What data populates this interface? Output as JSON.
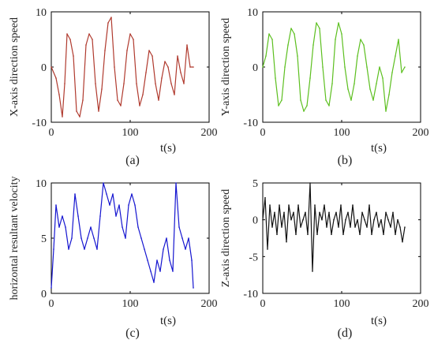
{
  "chart_data": [
    {
      "type": "line",
      "panel": "(a)",
      "caption": "(a)",
      "xlabel": "t(s)",
      "ylabel": "X-axis direction speed",
      "xlim": [
        0,
        200
      ],
      "ylim": [
        -10,
        10
      ],
      "xticks": [
        "0",
        "100",
        "200"
      ],
      "yticks": [
        "-10",
        "0",
        "10"
      ],
      "color": "#b03a2e",
      "x": [
        0,
        6,
        10,
        14,
        17,
        20,
        24,
        28,
        32,
        36,
        40,
        44,
        48,
        52,
        56,
        60,
        64,
        68,
        72,
        76,
        80,
        84,
        88,
        92,
        96,
        100,
        104,
        108,
        112,
        116,
        120,
        124,
        128,
        132,
        136,
        140,
        144,
        148,
        152,
        156,
        160,
        164,
        168,
        172,
        176,
        180
      ],
      "values": [
        0,
        -2,
        -5,
        -9,
        -3,
        6,
        5,
        2,
        -8,
        -9,
        -6,
        4,
        6,
        5,
        -3,
        -8,
        -4,
        3,
        8,
        9,
        0,
        -6,
        -7,
        -3,
        3,
        6,
        5,
        -3,
        -7,
        -5,
        -1,
        3,
        2,
        -3,
        -6,
        -2,
        1,
        0,
        -3,
        -5,
        2,
        -1,
        -3,
        4,
        0,
        0
      ]
    },
    {
      "type": "line",
      "panel": "(b)",
      "caption": "(b)",
      "xlabel": "t(s)",
      "ylabel": "Y-axis direction speed",
      "xlim": [
        0,
        200
      ],
      "ylim": [
        -10,
        10
      ],
      "xticks": [
        "0",
        "100",
        "200"
      ],
      "yticks": [
        "-10",
        "0",
        "10"
      ],
      "color": "#5cbf1f",
      "x": [
        0,
        4,
        8,
        12,
        16,
        20,
        24,
        28,
        32,
        36,
        40,
        44,
        48,
        52,
        56,
        60,
        64,
        68,
        72,
        76,
        80,
        84,
        88,
        92,
        96,
        100,
        104,
        108,
        112,
        116,
        120,
        124,
        128,
        132,
        136,
        140,
        144,
        148,
        152,
        156,
        160,
        164,
        168,
        172,
        176,
        180
      ],
      "values": [
        0,
        2,
        6,
        5,
        -2,
        -7,
        -6,
        0,
        4,
        7,
        6,
        2,
        -6,
        -8,
        -7,
        -2,
        4,
        8,
        7,
        0,
        -6,
        -7,
        -3,
        5,
        8,
        6,
        0,
        -4,
        -6,
        -3,
        2,
        5,
        4,
        0,
        -4,
        -6,
        -3,
        0,
        -2,
        -8,
        -5,
        -1,
        2,
        5,
        -1,
        0
      ]
    },
    {
      "type": "line",
      "panel": "(c)",
      "caption": "(c)",
      "xlabel": "t(s)",
      "ylabel": "horizontal resultant velocity",
      "xlim": [
        0,
        200
      ],
      "ylim": [
        0,
        10
      ],
      "xticks": [
        "0",
        "100",
        "200"
      ],
      "yticks": [
        "0",
        "5",
        "10"
      ],
      "color": "#1515d0",
      "x": [
        0,
        3,
        6,
        10,
        14,
        18,
        22,
        26,
        30,
        34,
        38,
        42,
        46,
        50,
        54,
        58,
        62,
        66,
        70,
        74,
        78,
        82,
        86,
        90,
        94,
        98,
        102,
        106,
        110,
        114,
        118,
        122,
        126,
        130,
        134,
        138,
        142,
        146,
        150,
        154,
        158,
        162,
        166,
        170,
        174,
        178,
        180
      ],
      "values": [
        0.5,
        4,
        8,
        6,
        7,
        6,
        4,
        5,
        9,
        7,
        5,
        4,
        5,
        6,
        5,
        4,
        7,
        10,
        9,
        8,
        9,
        7,
        8,
        6,
        5,
        8,
        9,
        8,
        6,
        5,
        4,
        3,
        2,
        1,
        3,
        2,
        4,
        5,
        3,
        2,
        10,
        6,
        5,
        4,
        5,
        3,
        0.5
      ]
    },
    {
      "type": "line",
      "panel": "(d)",
      "caption": "(d)",
      "xlabel": "t(s)",
      "ylabel": "Z-axis direction speed",
      "xlim": [
        0,
        200
      ],
      "ylim": [
        -10,
        5
      ],
      "xticks": [
        "0",
        "100",
        "200"
      ],
      "yticks": [
        "-10",
        "-5",
        "0",
        "5"
      ],
      "color": "#111111",
      "x": [
        0,
        3,
        6,
        9,
        12,
        15,
        18,
        21,
        24,
        27,
        30,
        33,
        36,
        39,
        42,
        45,
        48,
        51,
        54,
        57,
        60,
        63,
        66,
        69,
        72,
        75,
        78,
        81,
        84,
        87,
        90,
        93,
        96,
        99,
        102,
        105,
        108,
        111,
        114,
        117,
        120,
        123,
        126,
        129,
        132,
        135,
        138,
        141,
        144,
        147,
        150,
        153,
        156,
        159,
        162,
        165,
        168,
        171,
        174,
        177,
        180
      ],
      "values": [
        0,
        3,
        -4,
        2,
        -1,
        1,
        -2,
        2,
        -1,
        1,
        -3,
        2,
        0,
        1,
        -2,
        2,
        -1,
        0,
        1,
        -2,
        5,
        -7,
        2,
        -2,
        1,
        0,
        2,
        -1,
        1,
        -2,
        0,
        1,
        -1,
        2,
        -2,
        0,
        1,
        -1,
        2,
        -1,
        0,
        -2,
        1,
        0,
        -1,
        2,
        -2,
        0,
        1,
        -1,
        0,
        -2,
        1,
        0,
        -1,
        1,
        -2,
        0,
        -1,
        -3,
        -1
      ]
    }
  ]
}
